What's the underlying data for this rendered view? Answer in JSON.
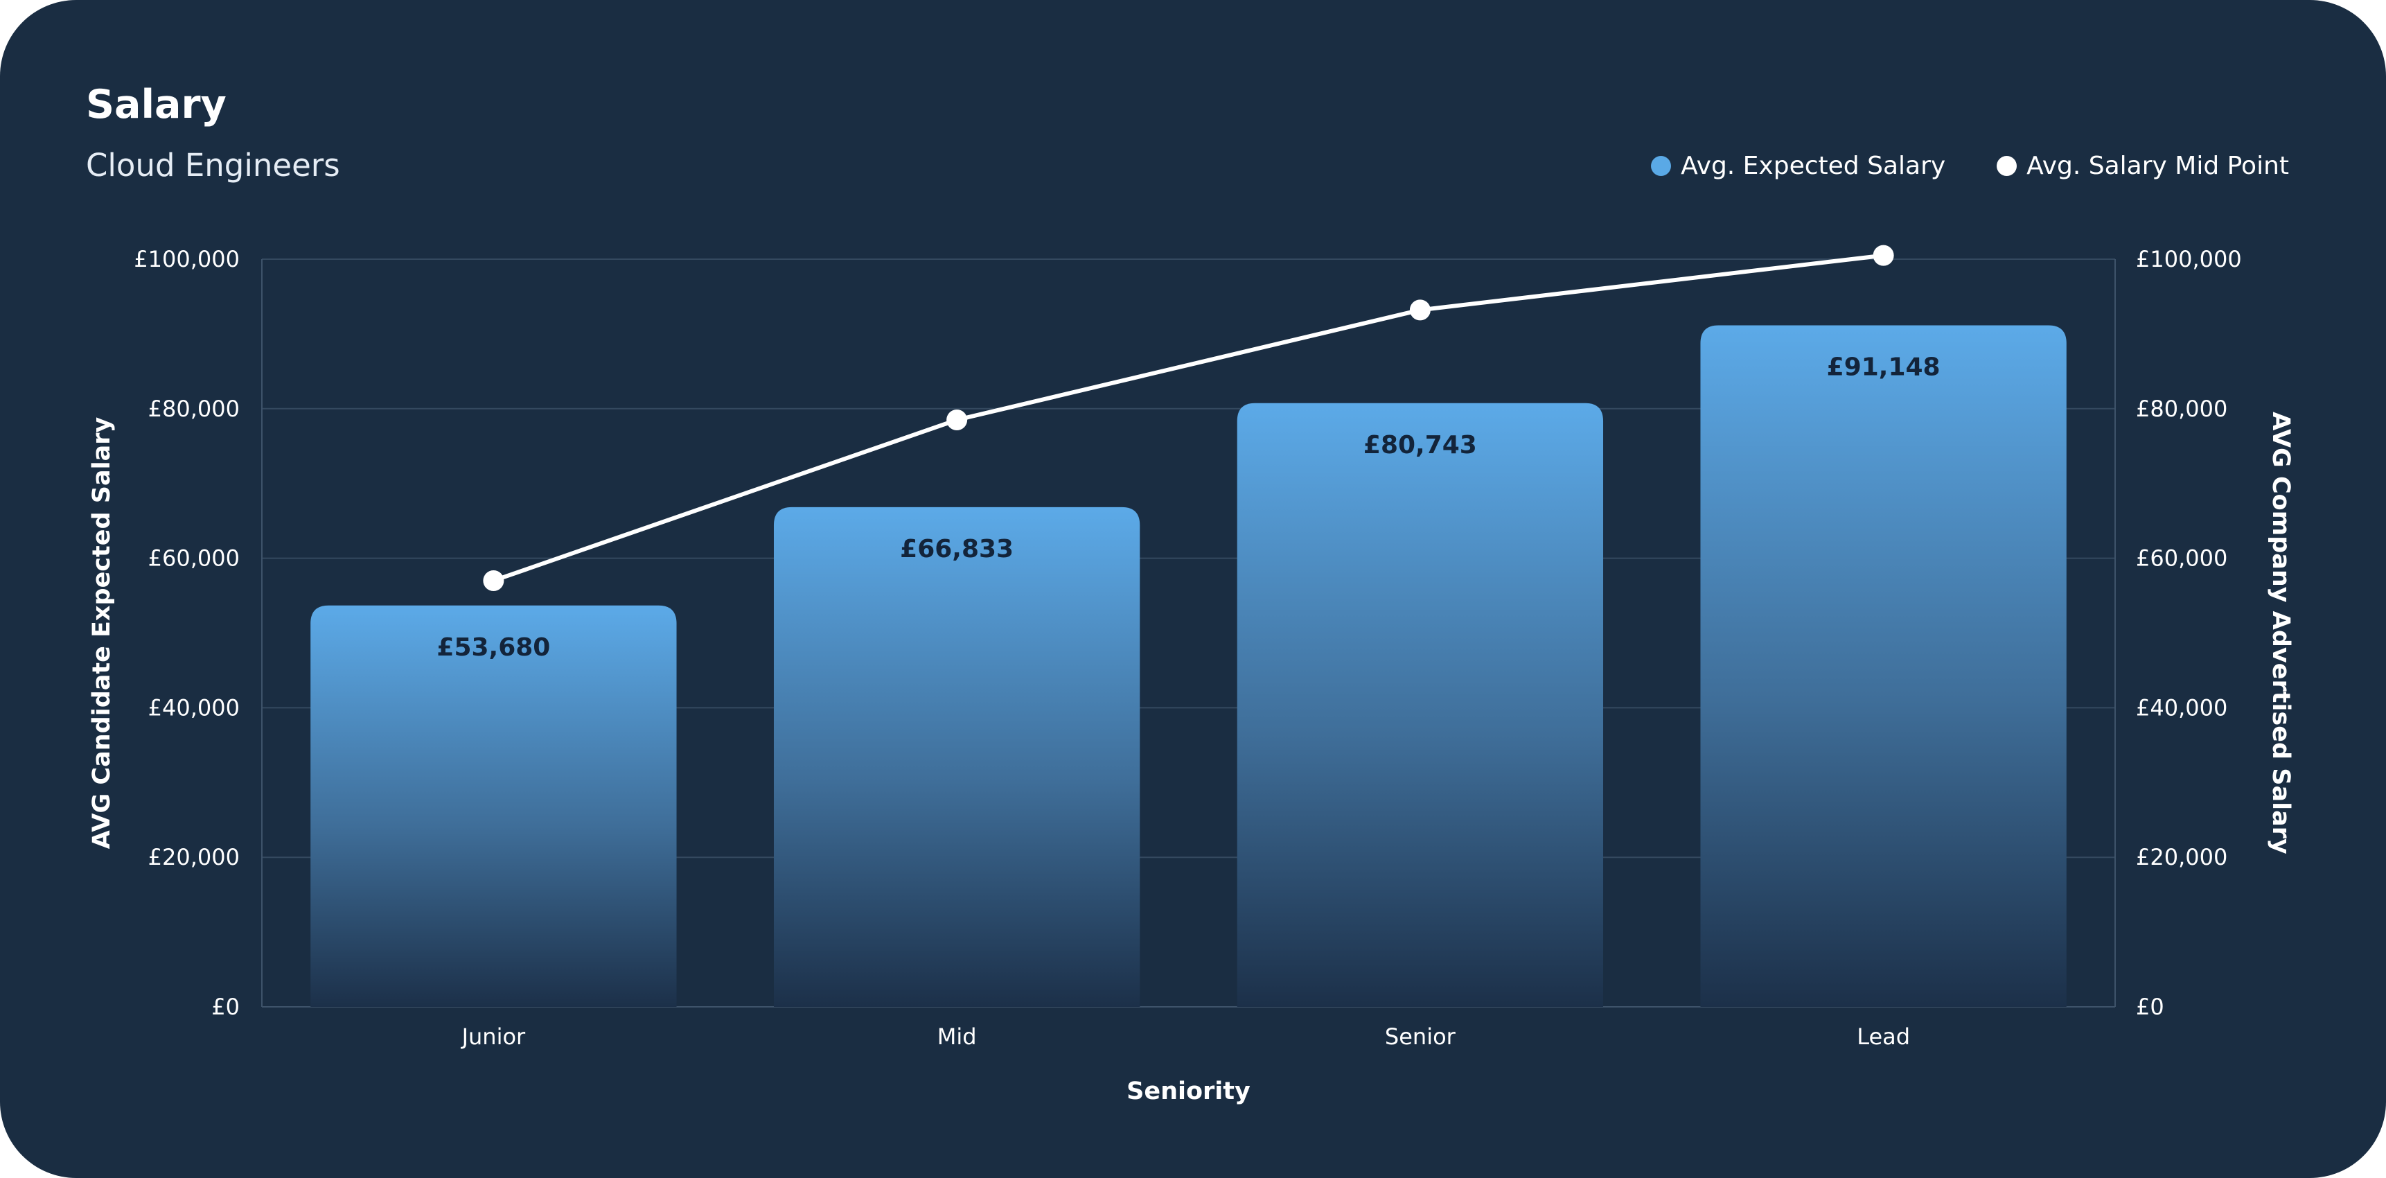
{
  "chart_data": {
    "type": "bar",
    "title": "Salary",
    "subtitle": "Cloud Engineers",
    "categories": [
      "Junior",
      "Mid",
      "Senior",
      "Lead"
    ],
    "series": [
      {
        "name": "Avg. Expected Salary",
        "type": "bar",
        "axis": "left",
        "color": "#5aa9e6",
        "values": [
          53680,
          66833,
          80743,
          91148
        ],
        "value_labels": [
          "£53,680",
          "£66,833",
          "£80,743",
          "£91,148"
        ]
      },
      {
        "name": "Avg. Salary Mid Point",
        "type": "line",
        "axis": "right",
        "color": "#ffffff",
        "values": [
          57000,
          78500,
          93200,
          100500
        ]
      }
    ],
    "xlabel": "Seniority",
    "ylabel": "AVG Candidate Expected Salary",
    "y2label": "AVG Company Advertised Salary",
    "ylim": [
      0,
      100000
    ],
    "y2lim": [
      0,
      100000
    ],
    "yticks": [
      0,
      20000,
      40000,
      60000,
      80000,
      100000
    ],
    "ytick_labels": [
      "£0",
      "£20,000",
      "£40,000",
      "£60,000",
      "£80,000",
      "£100,000"
    ],
    "grid": true,
    "legend_position": "top-right"
  }
}
